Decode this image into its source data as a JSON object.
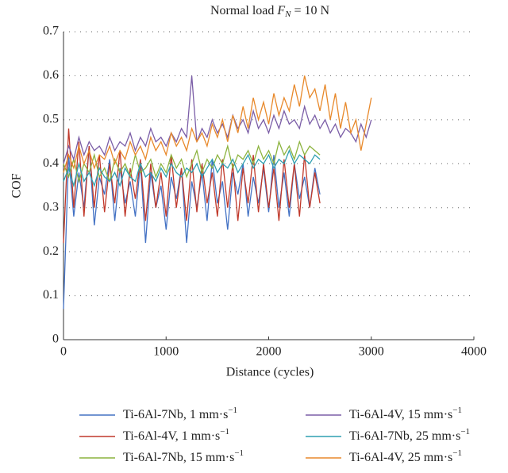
{
  "chart_data": {
    "type": "line",
    "title": {
      "text": "Normal load",
      "var": "F",
      "sub": "N",
      "rest": "= 10 N"
    },
    "xlabel": "Distance (cycles)",
    "ylabel": "COF",
    "xlim": [
      0,
      4000
    ],
    "xticks": [
      0,
      1000,
      2000,
      3000,
      4000
    ],
    "ylim": [
      0,
      0.7
    ],
    "yticks": [
      0,
      0.1,
      0.2,
      0.3,
      0.4,
      0.5,
      0.6,
      0.7
    ],
    "grid": true,
    "x": [
      0,
      50,
      100,
      150,
      200,
      250,
      300,
      350,
      400,
      450,
      500,
      550,
      600,
      650,
      700,
      750,
      800,
      850,
      900,
      950,
      1000,
      1050,
      1100,
      1150,
      1200,
      1250,
      1300,
      1350,
      1400,
      1450,
      1500,
      1550,
      1600,
      1650,
      1700,
      1750,
      1800,
      1850,
      1900,
      1950,
      2000,
      2050,
      2100,
      2150,
      2200,
      2250,
      2300,
      2350,
      2400,
      2450,
      2500,
      2550,
      2600,
      2650,
      2700,
      2750,
      2800,
      2850,
      2900,
      2950,
      3000
    ],
    "series": [
      {
        "name": "Ti-6Al-7Nb, 1 mm·s",
        "sup": "−1",
        "color": "#4472c4",
        "values": [
          0.07,
          0.42,
          0.28,
          0.38,
          0.3,
          0.44,
          0.26,
          0.37,
          0.33,
          0.41,
          0.27,
          0.39,
          0.31,
          0.36,
          0.28,
          0.4,
          0.22,
          0.38,
          0.3,
          0.35,
          0.25,
          0.37,
          0.32,
          0.39,
          0.22,
          0.36,
          0.3,
          0.38,
          0.27,
          0.41,
          0.31,
          0.36,
          0.25,
          0.38,
          0.33,
          0.4,
          0.28,
          0.37,
          0.31,
          0.39,
          0.29,
          0.42,
          0.3,
          0.38,
          0.28,
          0.4,
          0.32,
          0.37,
          0.3,
          0.39,
          0.33,
          null,
          null,
          null,
          null,
          null,
          null,
          null,
          null,
          null,
          null
        ]
      },
      {
        "name": "Ti-6Al-4V, 1 mm·s",
        "sup": "−1",
        "color": "#c0392b",
        "values": [
          0.22,
          0.48,
          0.3,
          0.45,
          0.28,
          0.44,
          0.3,
          0.42,
          0.29,
          0.4,
          0.31,
          0.43,
          0.28,
          0.39,
          0.32,
          0.41,
          0.27,
          0.4,
          0.3,
          0.38,
          0.28,
          0.42,
          0.3,
          0.39,
          0.27,
          0.41,
          0.29,
          0.4,
          0.31,
          0.38,
          0.28,
          0.41,
          0.3,
          0.4,
          0.27,
          0.39,
          0.31,
          0.42,
          0.29,
          0.4,
          0.3,
          0.39,
          0.27,
          0.41,
          0.3,
          0.4,
          0.28,
          0.42,
          0.3,
          0.38,
          0.31,
          null,
          null,
          null,
          null,
          null,
          null,
          null,
          null,
          null,
          null
        ]
      },
      {
        "name": "Ti-6Al-7Nb, 15 mm·s",
        "sup": "−1",
        "color": "#8cb33e",
        "values": [
          0.4,
          0.37,
          0.41,
          0.36,
          0.4,
          0.38,
          0.42,
          0.37,
          0.39,
          0.36,
          0.41,
          0.38,
          0.4,
          0.37,
          0.42,
          0.38,
          0.39,
          0.41,
          0.37,
          0.4,
          0.38,
          0.42,
          0.39,
          0.41,
          0.37,
          0.4,
          0.43,
          0.38,
          0.41,
          0.39,
          0.42,
          0.4,
          0.44,
          0.39,
          0.42,
          0.41,
          0.43,
          0.4,
          0.44,
          0.41,
          0.43,
          0.4,
          0.45,
          0.42,
          0.44,
          0.41,
          0.45,
          0.42,
          0.44,
          0.43,
          0.42,
          null,
          null,
          null,
          null,
          null,
          null,
          null,
          null,
          null,
          null
        ]
      },
      {
        "name": "Ti-6Al-4V, 15 mm·s",
        "sup": "−1",
        "color": "#7b5ea7",
        "values": [
          0.4,
          0.44,
          0.41,
          0.46,
          0.42,
          0.45,
          0.43,
          0.44,
          0.42,
          0.46,
          0.43,
          0.45,
          0.44,
          0.47,
          0.43,
          0.46,
          0.44,
          0.48,
          0.45,
          0.46,
          0.44,
          0.47,
          0.45,
          0.48,
          0.46,
          0.6,
          0.45,
          0.48,
          0.46,
          0.5,
          0.47,
          0.49,
          0.46,
          0.51,
          0.48,
          0.5,
          0.47,
          0.52,
          0.48,
          0.5,
          0.47,
          0.51,
          0.48,
          0.52,
          0.49,
          0.5,
          0.48,
          0.53,
          0.49,
          0.51,
          0.48,
          0.5,
          0.47,
          0.49,
          0.46,
          0.48,
          0.47,
          0.45,
          0.49,
          0.46,
          0.5
        ]
      },
      {
        "name": "Ti-6Al-7Nb, 25 mm·s",
        "sup": "−1",
        "color": "#2e9fb0",
        "values": [
          0.36,
          0.39,
          0.35,
          0.4,
          0.36,
          0.38,
          0.35,
          0.39,
          0.37,
          0.36,
          0.38,
          0.35,
          0.39,
          0.37,
          0.36,
          0.4,
          0.37,
          0.38,
          0.36,
          0.39,
          0.37,
          0.4,
          0.38,
          0.37,
          0.39,
          0.38,
          0.4,
          0.37,
          0.39,
          0.41,
          0.38,
          0.4,
          0.39,
          0.41,
          0.38,
          0.4,
          0.42,
          0.39,
          0.41,
          0.4,
          0.42,
          0.39,
          0.41,
          0.4,
          0.43,
          0.4,
          0.42,
          0.41,
          0.4,
          0.42,
          0.41,
          null,
          null,
          null,
          null,
          null,
          null,
          null,
          null,
          null,
          null
        ]
      },
      {
        "name": "Ti-6Al-4V, 25 mm·s",
        "sup": "−1",
        "color": "#e8892b",
        "values": [
          0.38,
          0.42,
          0.39,
          0.44,
          0.4,
          0.43,
          0.39,
          0.42,
          0.41,
          0.44,
          0.4,
          0.43,
          0.41,
          0.45,
          0.42,
          0.44,
          0.41,
          0.46,
          0.43,
          0.45,
          0.42,
          0.47,
          0.44,
          0.46,
          0.43,
          0.48,
          0.45,
          0.47,
          0.44,
          0.49,
          0.46,
          0.5,
          0.45,
          0.51,
          0.47,
          0.53,
          0.48,
          0.55,
          0.5,
          0.54,
          0.49,
          0.56,
          0.51,
          0.55,
          0.52,
          0.58,
          0.53,
          0.6,
          0.55,
          0.57,
          0.52,
          0.58,
          0.5,
          0.56,
          0.48,
          0.54,
          0.47,
          0.5,
          0.43,
          0.49,
          0.55
        ]
      }
    ]
  }
}
